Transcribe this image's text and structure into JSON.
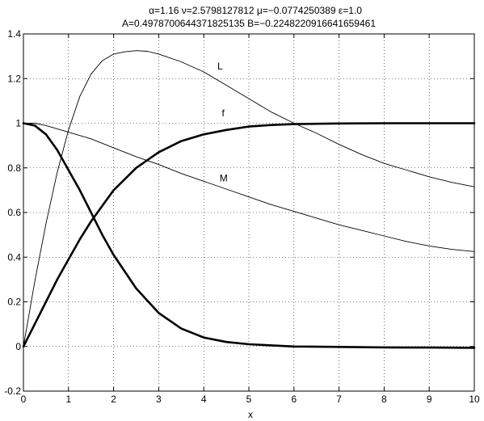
{
  "chart_data": {
    "type": "line",
    "title_lines": [
      "α=1.16   ν=2.5798127812   μ=−0.0774250389   ε=1.0",
      "A=0.497870064437182513​5   B=−0.224822091664165946​1"
    ],
    "xlabel": "x",
    "ylabel": "",
    "xlim": [
      0,
      10
    ],
    "ylim": [
      -0.2,
      1.4
    ],
    "xticks": [
      0,
      1,
      2,
      3,
      4,
      5,
      6,
      7,
      8,
      9,
      10
    ],
    "yticks": [
      -0.2,
      0,
      0.2,
      0.4,
      0.6,
      0.8,
      1,
      1.2,
      1.4
    ],
    "grid": true,
    "series": [
      {
        "name": "L",
        "line_weight": "thin",
        "label_at": [
          4.3,
          1.24
        ],
        "x": [
          0,
          0.25,
          0.5,
          0.75,
          1,
          1.25,
          1.5,
          1.75,
          2,
          2.25,
          2.5,
          2.75,
          3,
          3.5,
          4,
          4.5,
          5,
          5.5,
          6,
          6.5,
          7,
          7.5,
          8,
          8.5,
          9,
          9.5,
          10
        ],
        "values": [
          0,
          0.29,
          0.55,
          0.78,
          0.97,
          1.12,
          1.22,
          1.28,
          1.31,
          1.32,
          1.325,
          1.322,
          1.31,
          1.275,
          1.23,
          1.17,
          1.11,
          1.05,
          1.0,
          0.955,
          0.905,
          0.86,
          0.82,
          0.79,
          0.76,
          0.735,
          0.715
        ]
      },
      {
        "name": "f",
        "line_weight": "thick",
        "label_at": [
          4.4,
          1.03
        ],
        "x": [
          0,
          0.25,
          0.5,
          0.75,
          1,
          1.25,
          1.5,
          1.75,
          2,
          2.5,
          3,
          3.5,
          4,
          4.5,
          5,
          5.5,
          6,
          7,
          8,
          9,
          10
        ],
        "values": [
          0,
          0.1,
          0.2,
          0.3,
          0.39,
          0.48,
          0.56,
          0.63,
          0.7,
          0.8,
          0.87,
          0.92,
          0.95,
          0.97,
          0.985,
          0.992,
          0.996,
          0.999,
          1.0,
          1.0,
          1.0
        ]
      },
      {
        "name": "",
        "line_weight": "thick",
        "x": [
          0,
          0.25,
          0.5,
          0.75,
          1,
          1.25,
          1.5,
          1.75,
          2,
          2.5,
          3,
          3.5,
          4,
          4.5,
          5,
          5.5,
          6,
          7,
          8,
          9,
          10
        ],
        "values": [
          1.0,
          0.99,
          0.95,
          0.88,
          0.79,
          0.7,
          0.6,
          0.5,
          0.41,
          0.26,
          0.15,
          0.08,
          0.04,
          0.02,
          0.01,
          0.005,
          0.0,
          -0.002,
          -0.004,
          -0.005,
          -0.006
        ]
      },
      {
        "name": "M",
        "line_weight": "thin",
        "label_at": [
          4.35,
          0.74
        ],
        "x": [
          0,
          0.25,
          0.5,
          0.75,
          1,
          1.5,
          2,
          2.5,
          3,
          3.5,
          4,
          4.5,
          5,
          5.5,
          6,
          6.5,
          7,
          7.5,
          8,
          8.5,
          9,
          9.5,
          10
        ],
        "values": [
          1.0,
          1.0,
          0.99,
          0.975,
          0.96,
          0.93,
          0.89,
          0.85,
          0.815,
          0.775,
          0.74,
          0.705,
          0.67,
          0.635,
          0.605,
          0.575,
          0.545,
          0.52,
          0.495,
          0.47,
          0.45,
          0.435,
          0.425
        ]
      }
    ]
  }
}
